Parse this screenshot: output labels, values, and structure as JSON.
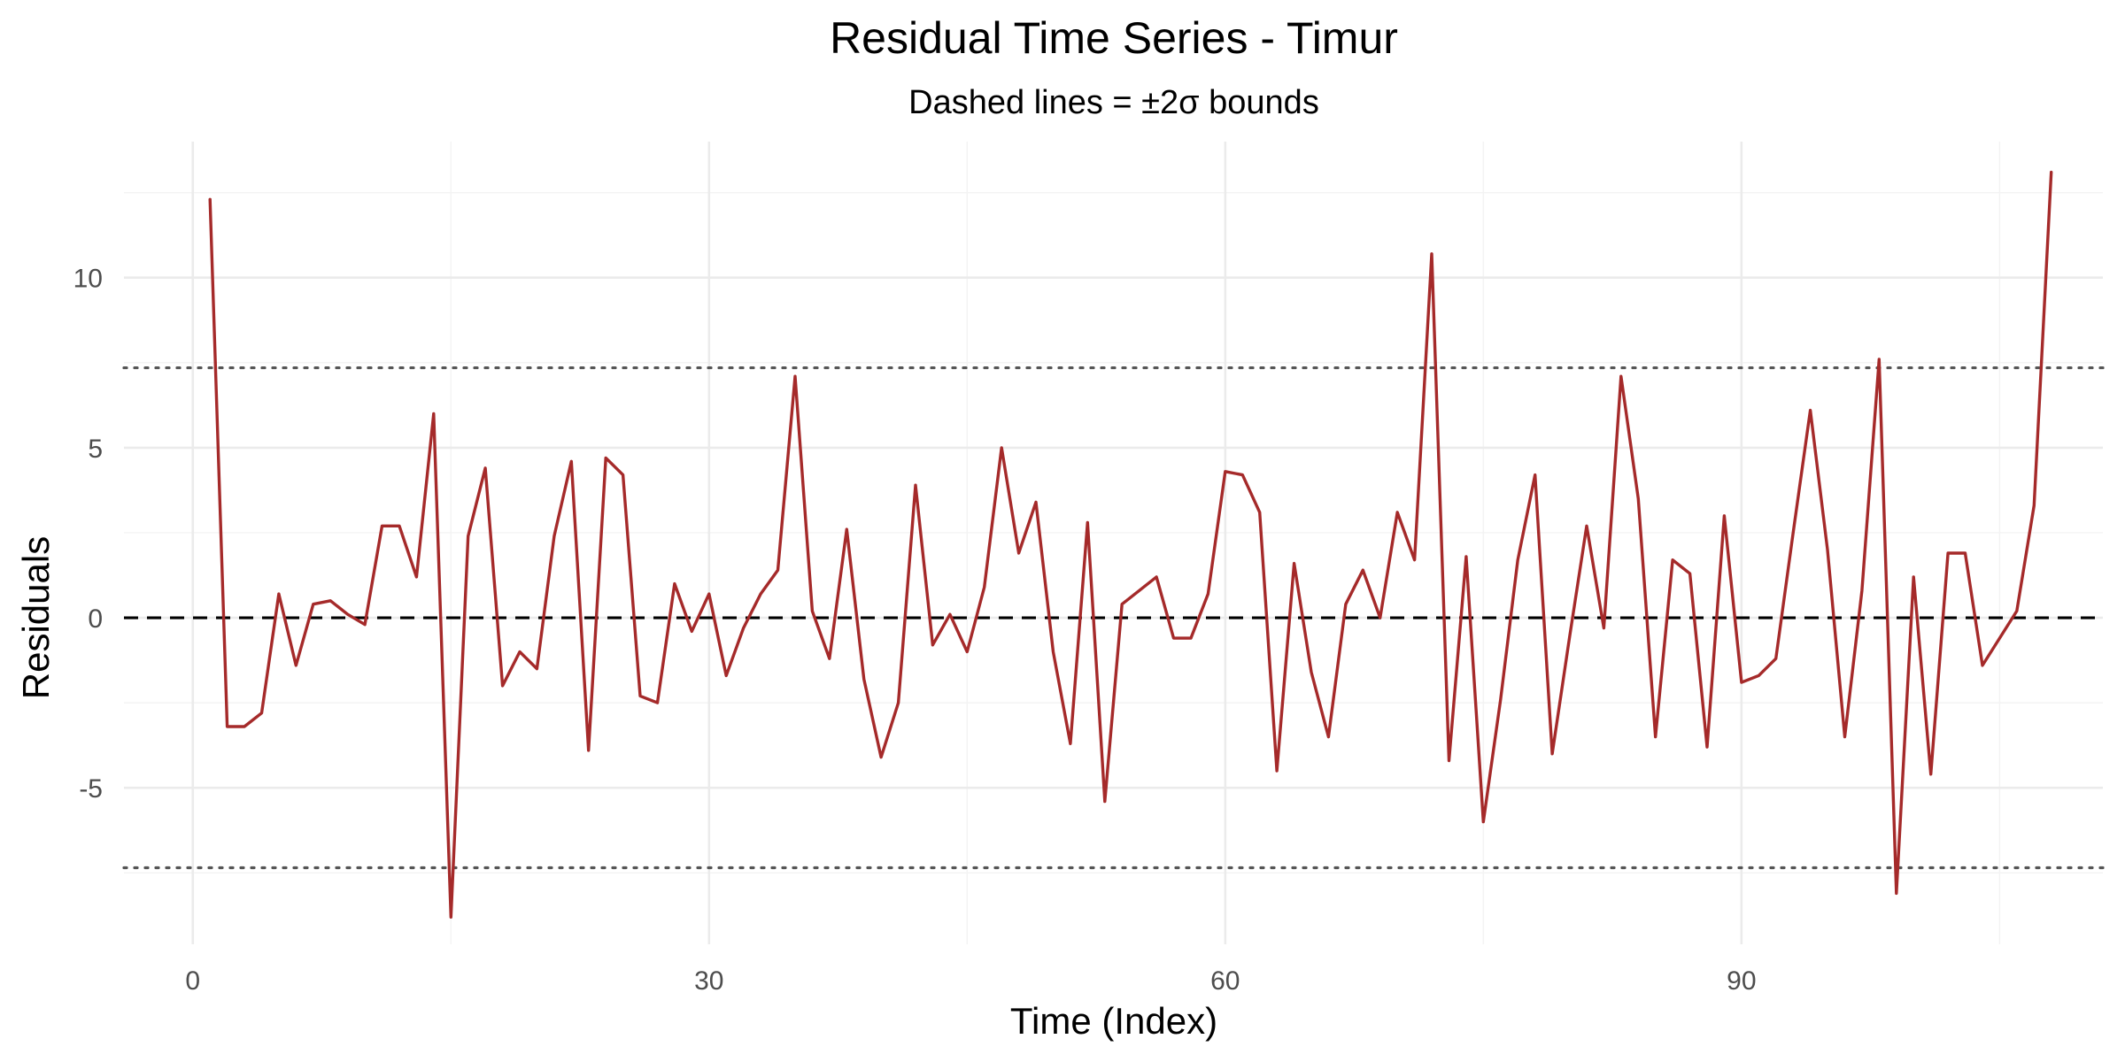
{
  "chart_data": {
    "type": "line",
    "title": "Residual Time Series - Timur",
    "subtitle": "Dashed lines = ±2σ bounds",
    "xlabel": "Time (Index)",
    "ylabel": "Residuals",
    "xlim": [
      -4,
      111
    ],
    "ylim": [
      -9.6,
      14.0
    ],
    "x_ticks": [
      0,
      30,
      60,
      90
    ],
    "y_ticks": [
      -5,
      0,
      5,
      10
    ],
    "x_tick_labels": [
      "0",
      "30",
      "60",
      "90"
    ],
    "y_tick_labels": [
      "-5",
      "0",
      "5",
      "10"
    ],
    "grid": true,
    "reference_lines": [
      {
        "y": 0,
        "style": "dashed",
        "color": "#000000"
      },
      {
        "y": 7.35,
        "style": "dotted",
        "color": "#555555"
      },
      {
        "y": -7.35,
        "style": "dotted",
        "color": "#555555"
      }
    ],
    "series": [
      {
        "color": "#A52A2A",
        "x": [
          1,
          2,
          3,
          4,
          5,
          6,
          7,
          8,
          9,
          10,
          11,
          12,
          13,
          14,
          15,
          16,
          17,
          18,
          19,
          20,
          21,
          22,
          23,
          24,
          25,
          26,
          27,
          28,
          29,
          30,
          31,
          32,
          33,
          34,
          35,
          36,
          37,
          38,
          39,
          40,
          41,
          42,
          43,
          44,
          45,
          46,
          47,
          48,
          49,
          50,
          51,
          52,
          53,
          54,
          55,
          56,
          57,
          58,
          59,
          60,
          61,
          62,
          63,
          64,
          65,
          66,
          67,
          68,
          69,
          70,
          71,
          72,
          73,
          74,
          75,
          76,
          77,
          78,
          79,
          80,
          81,
          82,
          83,
          84,
          85,
          86,
          87,
          88,
          89,
          90,
          91,
          92,
          93,
          94,
          95,
          96,
          97,
          98,
          99,
          100,
          101,
          102,
          103,
          104,
          105,
          106,
          107,
          108
        ],
        "values": [
          12.3,
          -3.2,
          -3.2,
          -2.8,
          0.7,
          -1.4,
          0.4,
          0.5,
          0.1,
          -0.2,
          2.7,
          2.7,
          1.2,
          6.0,
          -8.8,
          2.4,
          4.4,
          -2.0,
          -1.0,
          -1.5,
          2.4,
          4.6,
          -3.9,
          4.7,
          4.2,
          -2.3,
          -2.5,
          1.0,
          -0.4,
          0.7,
          -1.7,
          -0.3,
          0.7,
          1.4,
          7.1,
          0.2,
          -1.2,
          2.6,
          -1.8,
          -4.1,
          -2.5,
          3.9,
          -0.8,
          0.1,
          -1.0,
          0.9,
          5.0,
          1.9,
          3.4,
          -1.0,
          -3.7,
          2.8,
          -5.4,
          0.4,
          0.8,
          1.2,
          -0.6,
          -0.6,
          0.7,
          4.3,
          4.2,
          3.1,
          -4.5,
          1.6,
          -1.6,
          -3.5,
          0.4,
          1.4,
          0.0,
          3.1,
          1.7,
          10.7,
          -4.2,
          1.8,
          -6.0,
          -2.4,
          1.7,
          4.2,
          -4.0,
          -0.6,
          2.7,
          -0.3,
          7.1,
          3.5,
          -3.5,
          1.7,
          1.3,
          -3.8,
          3.0,
          -1.9,
          -1.7,
          -1.2,
          2.5,
          6.1,
          2.0,
          -3.5,
          0.8,
          7.6,
          -8.1,
          1.2,
          -4.6,
          1.9,
          1.9,
          -1.4,
          -0.6,
          0.2,
          3.3,
          13.1
        ]
      }
    ]
  }
}
